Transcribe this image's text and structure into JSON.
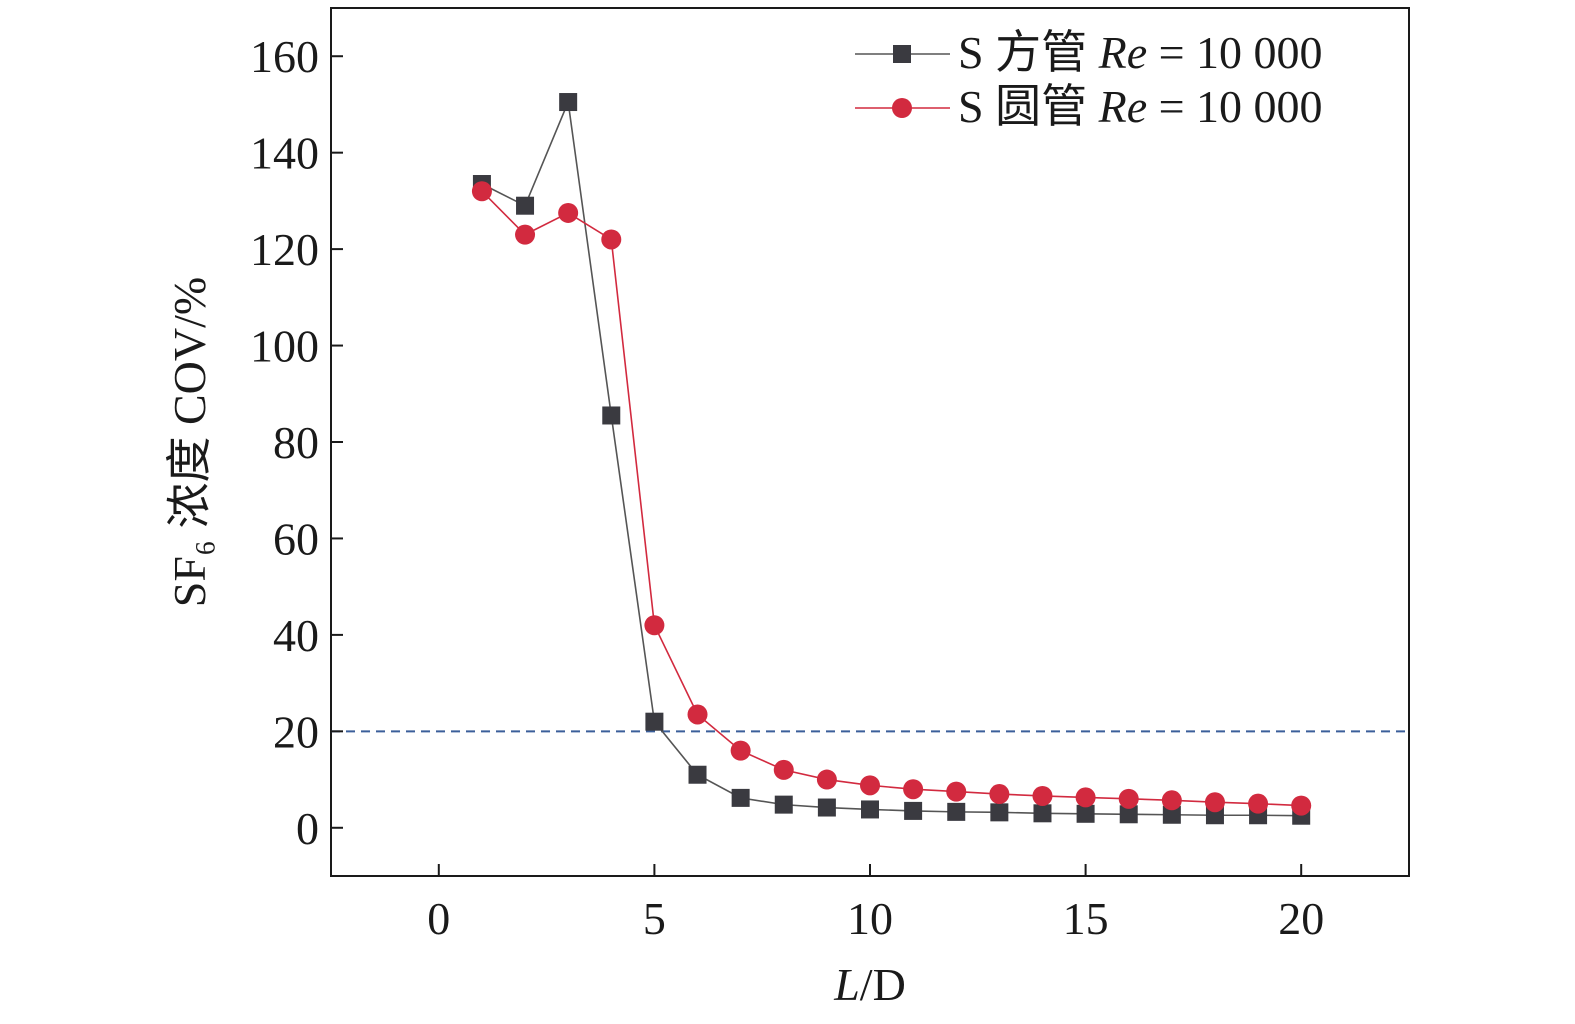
{
  "chart_data": {
    "type": "line",
    "xlabel_italic": "L",
    "xlabel_rest": "/D",
    "ylabel": "SF₆ 浓度 COV/%",
    "xlim": [
      -2.5,
      22.5
    ],
    "ylim": [
      -10,
      170
    ],
    "xticks": [
      0,
      5,
      10,
      15,
      20
    ],
    "yticks": [
      0,
      20,
      40,
      60,
      80,
      100,
      120,
      140,
      160
    ],
    "grid": false,
    "legend_position": "top-right",
    "reference_line": {
      "y": 20,
      "color": "#3b5f9a",
      "style": "dashed"
    },
    "series": [
      {
        "name_prefix": "S 方管 ",
        "name_italic": "Re",
        "name_suffix": " = 10 000",
        "color": "#555555",
        "marker_color": "#3a3a40",
        "marker": "square",
        "x": [
          1,
          2,
          3,
          4,
          5,
          6,
          7,
          8,
          9,
          10,
          11,
          12,
          13,
          14,
          15,
          16,
          17,
          18,
          19,
          20
        ],
        "values": [
          133.5,
          129,
          150.5,
          85.5,
          22,
          11,
          6.2,
          4.8,
          4.2,
          3.8,
          3.5,
          3.3,
          3.2,
          3.0,
          2.9,
          2.8,
          2.7,
          2.6,
          2.6,
          2.5
        ]
      },
      {
        "name_prefix": "S 圆管 ",
        "name_italic": "Re",
        "name_suffix": " = 10 000",
        "color": "#d22a3f",
        "marker_color": "#d22a3f",
        "marker": "circle",
        "x": [
          1,
          2,
          3,
          4,
          5,
          6,
          7,
          8,
          9,
          10,
          11,
          12,
          13,
          14,
          15,
          16,
          17,
          18,
          19,
          20
        ],
        "values": [
          132,
          123,
          127.5,
          122,
          42,
          23.5,
          16,
          12,
          10,
          8.8,
          8,
          7.5,
          7,
          6.6,
          6.3,
          6,
          5.7,
          5.3,
          5,
          4.6
        ]
      }
    ]
  }
}
